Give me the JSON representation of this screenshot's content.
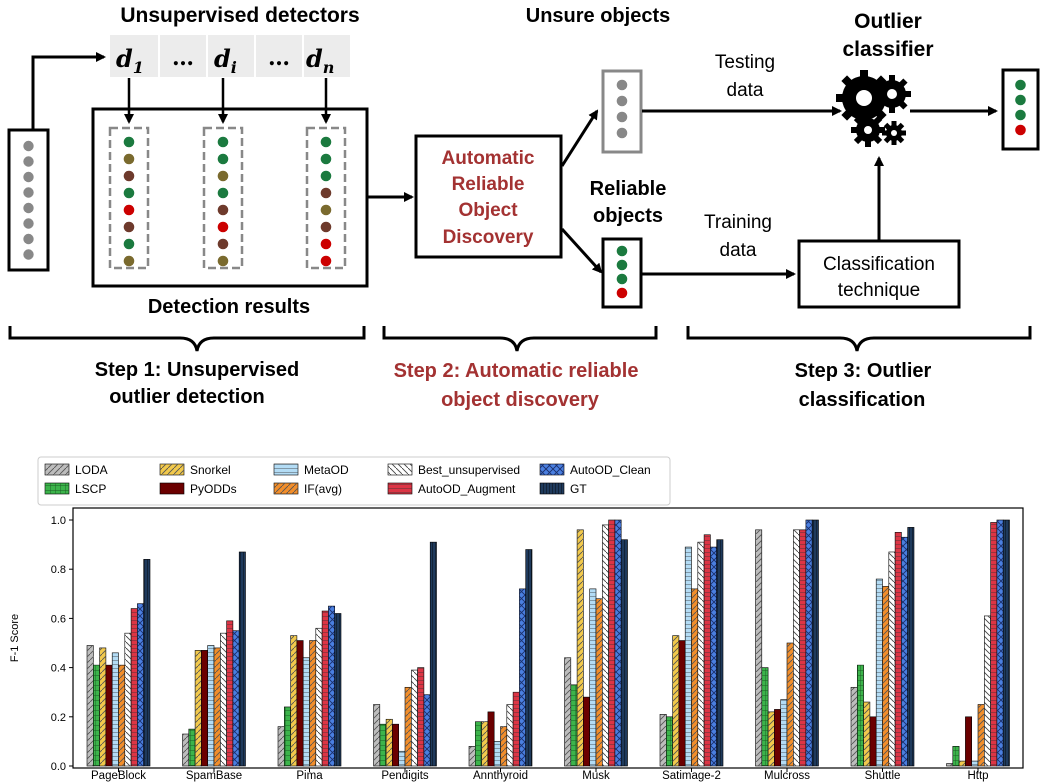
{
  "diagram": {
    "detectors_title": "Unsupervised detectors",
    "detectors": [
      {
        "base": "d",
        "sub": "1"
      },
      {
        "base": "…",
        "sub": ""
      },
      {
        "base": "d",
        "sub": "i"
      },
      {
        "base": "…",
        "sub": ""
      },
      {
        "base": "d",
        "sub": "n"
      }
    ],
    "detection_results_label": "Detection results",
    "discovery_box": [
      "Automatic",
      "Reliable",
      "Object",
      "Discovery"
    ],
    "unsure_label": "Unsure objects",
    "reliable_label": [
      "Reliable",
      "objects"
    ],
    "testing_label": [
      "Testing",
      "data"
    ],
    "training_label": [
      "Training",
      "data"
    ],
    "classifier_label": [
      "Outlier",
      "classifier"
    ],
    "technique_box": [
      "Classification",
      "technique"
    ],
    "step1": [
      "Step 1: Unsupervised",
      "outlier detection"
    ],
    "step2": [
      "Step 2: Automatic reliable",
      "object discovery"
    ],
    "step3": [
      "Step 3: Outlier",
      "classification"
    ],
    "colors": {
      "green": "#1b7a3f",
      "red": "#cc0000",
      "brown": "#6e3a2c",
      "olive": "#7a6a2e",
      "gray": "#888888",
      "accent": "#a33232"
    },
    "input_points": [
      "gray",
      "gray",
      "gray",
      "gray",
      "gray",
      "gray",
      "gray",
      "gray"
    ],
    "detector_columns": [
      [
        "green",
        "olive",
        "brown",
        "green",
        "red",
        "brown",
        "green",
        "olive"
      ],
      [
        "green",
        "green",
        "olive",
        "green",
        "brown",
        "red",
        "brown",
        "olive"
      ],
      [
        "green",
        "green",
        "green",
        "brown",
        "olive",
        "brown",
        "red",
        "red"
      ]
    ],
    "unsure_points": [
      "gray",
      "gray",
      "gray",
      "gray"
    ],
    "reliable_points": [
      "green",
      "green",
      "green",
      "red"
    ],
    "output_points": [
      "green",
      "green",
      "green",
      "red"
    ]
  },
  "chart_data": {
    "type": "bar",
    "ylabel": "F-1 Score",
    "ylim": [
      0,
      1.0
    ],
    "yticks": [
      "0.0",
      "0.2",
      "0.4",
      "0.6",
      "0.8",
      "1.0"
    ],
    "grid": false,
    "legend_position": "top",
    "categories": [
      "PageBlock",
      "SpamBase",
      "Pima",
      "Pendigits",
      "Annthyroid",
      "Musk",
      "Satimage-2",
      "Mulcross",
      "Shuttle",
      "Http"
    ],
    "series": [
      {
        "name": "LODA",
        "color": "#bdbdbd",
        "pattern": "diag",
        "values": [
          0.49,
          0.13,
          0.16,
          0.25,
          0.08,
          0.44,
          0.21,
          0.96,
          0.32,
          0.01
        ]
      },
      {
        "name": "LSCP",
        "color": "#3cb44b",
        "pattern": "grid",
        "values": [
          0.41,
          0.15,
          0.24,
          0.17,
          0.18,
          0.33,
          0.2,
          0.4,
          0.41,
          0.08
        ]
      },
      {
        "name": "Snorkel",
        "color": "#f2c94c",
        "pattern": "diag",
        "values": [
          0.48,
          0.47,
          0.53,
          0.19,
          0.18,
          0.96,
          0.53,
          0.22,
          0.26,
          0.02
        ]
      },
      {
        "name": "PyODDs",
        "color": "#6b0000",
        "pattern": "solid",
        "values": [
          0.41,
          0.47,
          0.51,
          0.17,
          0.22,
          0.28,
          0.51,
          0.23,
          0.2,
          0.2
        ]
      },
      {
        "name": "MetaOD",
        "color": "#b3dcf5",
        "pattern": "hlines",
        "values": [
          0.46,
          0.49,
          0.44,
          0.06,
          0.1,
          0.72,
          0.89,
          0.27,
          0.76,
          0.02
        ]
      },
      {
        "name": "IF(avg)",
        "color": "#f28e2b",
        "pattern": "diag",
        "values": [
          0.41,
          0.48,
          0.51,
          0.32,
          0.16,
          0.68,
          0.72,
          0.5,
          0.73,
          0.25
        ]
      },
      {
        "name": "Best_unsupervised",
        "color": "#ffffff",
        "pattern": "backdiag",
        "values": [
          0.54,
          0.54,
          0.56,
          0.39,
          0.25,
          0.98,
          0.91,
          0.96,
          0.87,
          0.61
        ]
      },
      {
        "name": "AutoOD_Augment",
        "color": "#dc3545",
        "pattern": "hlines",
        "values": [
          0.64,
          0.59,
          0.63,
          0.4,
          0.3,
          1.0,
          0.94,
          0.96,
          0.95,
          0.99
        ]
      },
      {
        "name": "AutoOD_Clean",
        "color": "#4a7fe0",
        "pattern": "cross",
        "values": [
          0.66,
          0.55,
          0.65,
          0.29,
          0.72,
          1.0,
          0.89,
          1.0,
          0.93,
          1.0
        ]
      },
      {
        "name": "GT",
        "color": "#1f3a5c",
        "pattern": "vlines",
        "values": [
          0.84,
          0.87,
          0.62,
          0.91,
          0.88,
          0.92,
          0.92,
          1.0,
          0.97,
          1.0
        ]
      }
    ]
  }
}
